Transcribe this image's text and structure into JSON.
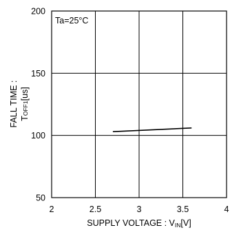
{
  "chart_data": {
    "type": "line",
    "title": "",
    "xlabel": "SUPPLY VOLTAGE : V",
    "xlabel_sub": "IN",
    "xlabel_suffix": "[V]",
    "ylabel_line1": "FALL TIME :",
    "ylabel_line2_prefix": "T",
    "ylabel_line2_sub": "OFF1",
    "ylabel_line2_suffix": "[us]",
    "annotation": "Ta=25°C",
    "xlim": [
      2,
      4
    ],
    "ylim": [
      50,
      200
    ],
    "xticks": [
      2,
      2.5,
      3,
      3.5,
      4
    ],
    "xtick_labels": [
      "2",
      "2.5",
      "3",
      "3.5",
      "4"
    ],
    "yticks": [
      50,
      100,
      150,
      200
    ],
    "ytick_labels": [
      "50",
      "100",
      "150",
      "200"
    ],
    "grid": true,
    "series": [
      {
        "x": [
          2.7,
          3.6
        ],
        "y": [
          103,
          106
        ],
        "color": "#000000"
      }
    ]
  }
}
